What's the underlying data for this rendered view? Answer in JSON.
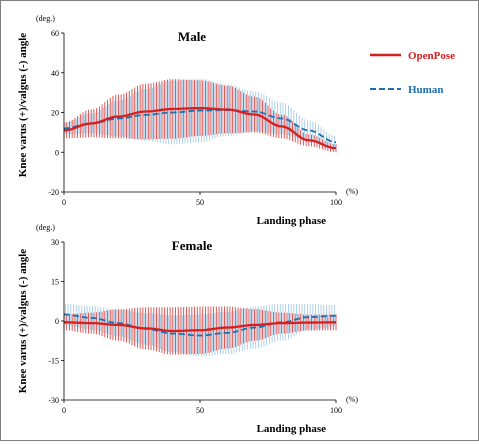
{
  "legend": {
    "openpose": "OpenPose",
    "human": "Human",
    "openpose_color": "#d42020",
    "human_color": "#1f6fb0"
  },
  "ylabel": "Knee varus (+)/valgus (-) angle",
  "chart_data": [
    {
      "type": "line",
      "title": "Male",
      "xlabel": "Landing phase",
      "x_unit": "(%)",
      "y_unit": "(deg.)",
      "xlim": [
        0,
        100
      ],
      "ylim": [
        -20,
        60
      ],
      "xticks": [
        0,
        50,
        100
      ],
      "yticks": [
        -20,
        0,
        20,
        40,
        60
      ],
      "x": [
        0,
        10,
        20,
        30,
        40,
        50,
        60,
        70,
        80,
        90,
        100
      ],
      "series": [
        {
          "name": "OpenPose",
          "style": "solid",
          "values": [
            11,
            14.5,
            18,
            20.5,
            21.8,
            22.2,
            21.5,
            19,
            13,
            6,
            2
          ],
          "sd": [
            4,
            7,
            11,
            14,
            15,
            14,
            12,
            9,
            6,
            3,
            2
          ]
        },
        {
          "name": "Human",
          "style": "dashed",
          "values": [
            12,
            14.5,
            17,
            18.8,
            20,
            21,
            21.2,
            20.5,
            17,
            11,
            5
          ],
          "sd": [
            3,
            5,
            9,
            13,
            16,
            16,
            13,
            10,
            8,
            5,
            3
          ]
        }
      ]
    },
    {
      "type": "line",
      "title": "Female",
      "xlabel": "Landing phase",
      "x_unit": "(%)",
      "y_unit": "(deg.)",
      "xlim": [
        0,
        100
      ],
      "ylim": [
        -30,
        30
      ],
      "xticks": [
        0,
        50,
        100
      ],
      "yticks": [
        -30,
        -15,
        0,
        15,
        30
      ],
      "x": [
        0,
        10,
        20,
        30,
        40,
        50,
        60,
        70,
        80,
        90,
        100
      ],
      "series": [
        {
          "name": "OpenPose",
          "style": "solid",
          "values": [
            -0.5,
            -0.8,
            -1.5,
            -2.8,
            -3.8,
            -3.5,
            -2.5,
            -1.5,
            -0.8,
            -0.6,
            -0.5
          ],
          "sd": [
            3,
            4,
            6,
            8,
            9,
            9,
            8,
            6,
            4,
            3,
            3
          ]
        },
        {
          "name": "Human",
          "style": "dashed",
          "values": [
            2.5,
            1.2,
            -0.8,
            -3,
            -4.8,
            -5.5,
            -4.5,
            -2.5,
            -0.5,
            1.5,
            2
          ],
          "sd": [
            4,
            4.5,
            5,
            6,
            7,
            8,
            8,
            8,
            7,
            5,
            4
          ]
        }
      ]
    }
  ]
}
